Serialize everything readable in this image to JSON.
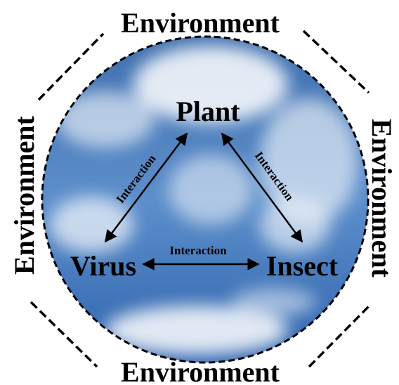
{
  "environment_labels": {
    "top": "Environment",
    "left": "Environment",
    "right": "Environment",
    "bottom": "Environment"
  },
  "nodes": [
    {
      "label": "Plant"
    },
    {
      "label": "Virus"
    },
    {
      "label": "Insect"
    }
  ],
  "edges": [
    {
      "label": "Interaction"
    },
    {
      "label": "Interaction"
    },
    {
      "label": "Interaction"
    }
  ]
}
